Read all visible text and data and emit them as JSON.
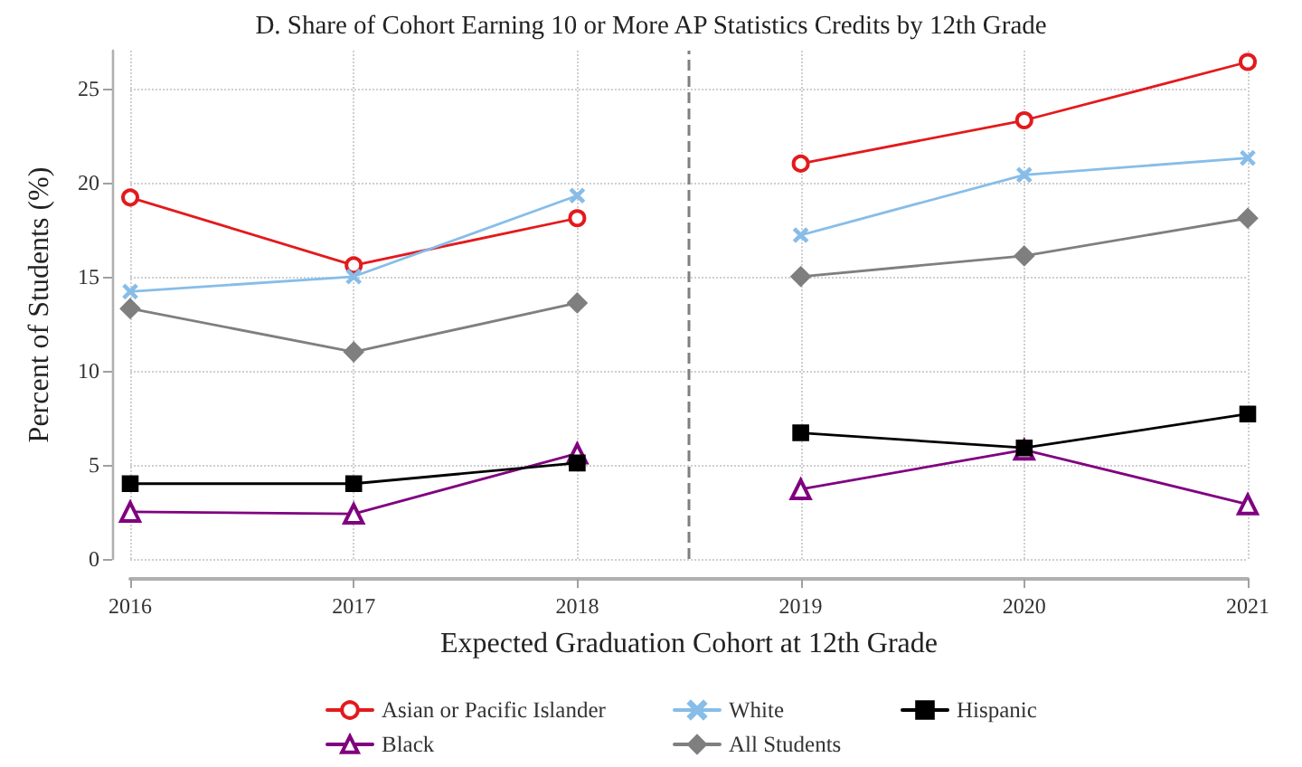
{
  "chart_data": {
    "type": "line",
    "title": "D. Share of Cohort Earning 10 or More AP Statistics Credits by 12th Grade",
    "xlabel": "Expected Graduation Cohort at 12th Grade",
    "ylabel": "Percent of Students (%)",
    "x": [
      2016,
      2017,
      2018,
      2018.5,
      2019,
      2020,
      2021
    ],
    "series": [
      {
        "name": "Asian or Pacific Islander",
        "color": "#e31a1c",
        "marker": "circle",
        "values": [
          19.2,
          15.6,
          18.1,
          null,
          21.0,
          23.3,
          26.4
        ]
      },
      {
        "name": "Black",
        "color": "#800080",
        "marker": "triangle",
        "values": [
          2.5,
          2.4,
          5.6,
          null,
          3.7,
          5.8,
          2.9
        ]
      },
      {
        "name": "White",
        "color": "#87bde8",
        "marker": "cross",
        "values": [
          14.2,
          15.0,
          19.3,
          null,
          17.2,
          20.4,
          21.3
        ]
      },
      {
        "name": "All Students",
        "color": "#7f7f7f",
        "marker": "diamond",
        "values": [
          13.3,
          11.0,
          13.6,
          null,
          15.0,
          16.1,
          18.1
        ]
      },
      {
        "name": "Hispanic",
        "color": "#000000",
        "marker": "square",
        "values": [
          4.0,
          4.0,
          5.1,
          null,
          6.7,
          5.9,
          7.7
        ]
      }
    ],
    "xlim": [
      2016,
      2021
    ],
    "xticks": [
      2016,
      2017,
      2018,
      2019,
      2020,
      2021
    ],
    "ylim": [
      0,
      27
    ],
    "yticks": [
      0,
      5,
      10,
      15,
      20,
      25
    ],
    "ref_lines": [
      {
        "axis": "x",
        "value": 2018.5,
        "color": "#7f7f7f",
        "line_style": "dashed"
      }
    ],
    "grid": true,
    "legend": "bottom",
    "line_style": "solid"
  }
}
